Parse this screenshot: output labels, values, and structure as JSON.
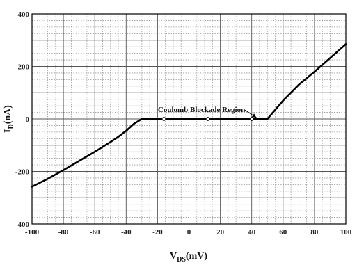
{
  "chart_data": {
    "type": "line",
    "title": "",
    "xlabel": "V",
    "xlabel_sub": "DS",
    "xlabel_unit": "(mV)",
    "ylabel": "I",
    "ylabel_sub": "D",
    "ylabel_unit": "(nA)",
    "xlim": [
      -100,
      100
    ],
    "ylim": [
      -400,
      400
    ],
    "x_ticks": [
      "-100",
      "-80",
      "-60",
      "-40",
      "-20",
      "0",
      "20",
      "40",
      "60",
      "80",
      "100"
    ],
    "y_ticks": [
      "-400",
      "-200",
      "0",
      "200",
      "400"
    ],
    "grid": true,
    "legend": "none",
    "line_color": "#000000",
    "series": [
      {
        "x": [
          -100,
          -90,
          -80,
          -70,
          -60,
          -50,
          -45,
          -40,
          -35,
          -30,
          -20,
          -10,
          0,
          10,
          20,
          30,
          40,
          50,
          55,
          60,
          70,
          80,
          90,
          100
        ],
        "y": [
          -258,
          -228,
          -195,
          -160,
          -125,
          -88,
          -68,
          -45,
          -18,
          0,
          0,
          0,
          0,
          0,
          0,
          0,
          0,
          0,
          35,
          70,
          130,
          180,
          232,
          285
        ]
      }
    ],
    "markers": {
      "x": [
        -16,
        12,
        40
      ],
      "y": [
        0,
        0,
        0
      ]
    },
    "annotations": [
      {
        "text": "Coulomb Blockade Region",
        "x": 8,
        "y": 0
      }
    ]
  }
}
